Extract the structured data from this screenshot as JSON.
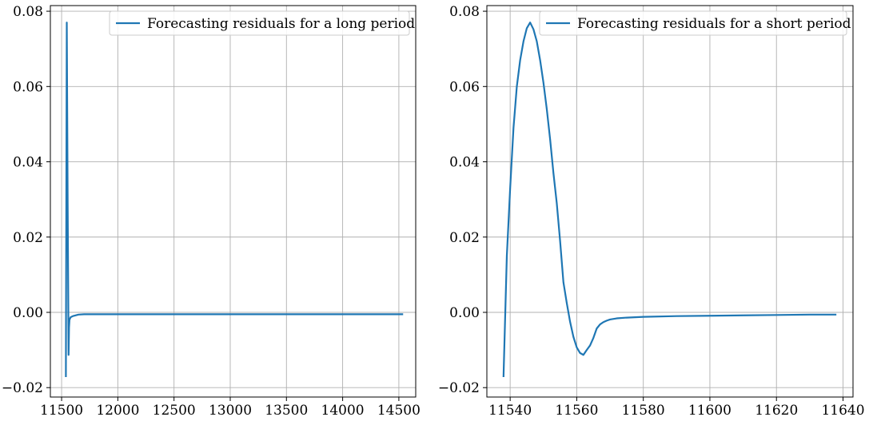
{
  "chart_data": [
    {
      "type": "line",
      "title": "",
      "xlabel": "",
      "ylabel": "",
      "xlim": [
        11400,
        14650
      ],
      "ylim": [
        -0.0225,
        0.0815
      ],
      "xticks": [
        11500,
        12000,
        12500,
        13000,
        13500,
        14000,
        14500
      ],
      "xtick_labels": [
        "11500",
        "12000",
        "12500",
        "13000",
        "13500",
        "14000",
        "14500"
      ],
      "yticks": [
        -0.02,
        0.0,
        0.02,
        0.04,
        0.06,
        0.08
      ],
      "ytick_labels": [
        "−0.02",
        "0.00",
        "0.02",
        "0.04",
        "0.06",
        "0.08"
      ],
      "grid": true,
      "legend_position": "top-right",
      "series": [
        {
          "name": "Forecasting residuals for a long period",
          "color": "#1f77b4",
          "x": [
            11538,
            11546,
            11554,
            11562,
            11566,
            11570,
            11580,
            11600,
            11650,
            11700,
            12000,
            12500,
            13000,
            13500,
            14000,
            14538
          ],
          "y": [
            -0.0172,
            0.077,
            0.029,
            -0.0113,
            -0.004,
            -0.002,
            -0.0013,
            -0.001,
            -0.0006,
            -0.0005,
            -0.0005,
            -0.0005,
            -0.0005,
            -0.0005,
            -0.0005,
            -0.0005
          ]
        }
      ]
    },
    {
      "type": "line",
      "title": "",
      "xlabel": "",
      "ylabel": "",
      "xlim": [
        11533,
        11643
      ],
      "ylim": [
        -0.0225,
        0.0815
      ],
      "xticks": [
        11540,
        11560,
        11580,
        11600,
        11620,
        11640
      ],
      "xtick_labels": [
        "11540",
        "11560",
        "11580",
        "11600",
        "11620",
        "11640"
      ],
      "yticks": [
        -0.02,
        0.0,
        0.02,
        0.04,
        0.06,
        0.08
      ],
      "ytick_labels": [
        "−0.02",
        "0.00",
        "0.02",
        "0.04",
        "0.06",
        "0.08"
      ],
      "grid": true,
      "legend_position": "top-right",
      "series": [
        {
          "name": "Forecasting residuals for a short period",
          "color": "#1f77b4",
          "x": [
            11538,
            11539,
            11540,
            11541,
            11542,
            11543,
            11544,
            11545,
            11546,
            11547,
            11548,
            11549,
            11550,
            11551,
            11552,
            11553,
            11554,
            11555,
            11556,
            11557,
            11558,
            11559,
            11560,
            11561,
            11562,
            11563,
            11564,
            11565,
            11566,
            11567,
            11568,
            11569,
            11570,
            11572,
            11575,
            11580,
            11590,
            11600,
            11610,
            11620,
            11630,
            11638
          ],
          "y": [
            -0.0172,
            0.015,
            0.033,
            0.049,
            0.06,
            0.067,
            0.072,
            0.0755,
            0.077,
            0.0752,
            0.072,
            0.067,
            0.061,
            0.054,
            0.046,
            0.037,
            0.029,
            0.019,
            0.008,
            0.0025,
            -0.0025,
            -0.0065,
            -0.0093,
            -0.0108,
            -0.0113,
            -0.01,
            -0.0088,
            -0.0068,
            -0.0043,
            -0.0032,
            -0.0026,
            -0.0022,
            -0.0019,
            -0.0016,
            -0.0014,
            -0.0012,
            -0.001,
            -0.0009,
            -0.0008,
            -0.0007,
            -0.0006,
            -0.0006
          ]
        }
      ]
    }
  ]
}
